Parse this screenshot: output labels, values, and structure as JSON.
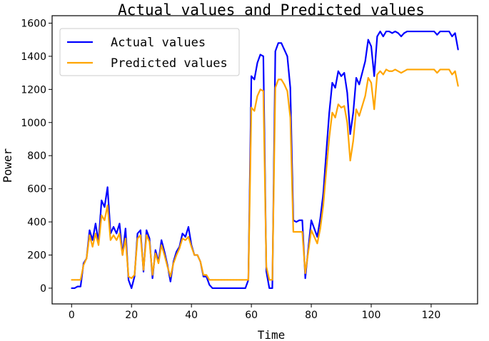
{
  "chart_data": {
    "type": "line",
    "title": "Actual values and Predicted values",
    "xlabel": "Time",
    "ylabel": "Power",
    "xlim": [
      -6.5,
      135.5
    ],
    "ylim": [
      -95,
      1645
    ],
    "xticks": [
      0,
      20,
      40,
      60,
      80,
      100,
      120
    ],
    "yticks": [
      0,
      200,
      400,
      600,
      800,
      1000,
      1200,
      1400,
      1600
    ],
    "grid": false,
    "legend_position": "top-left",
    "series": [
      {
        "name": "Actual values",
        "color": "#0000ff",
        "x": [
          0,
          1,
          2,
          3,
          4,
          5,
          6,
          7,
          8,
          9,
          10,
          11,
          12,
          13,
          14,
          15,
          16,
          17,
          18,
          19,
          20,
          21,
          22,
          23,
          24,
          25,
          26,
          27,
          28,
          29,
          30,
          31,
          32,
          33,
          34,
          35,
          36,
          37,
          38,
          39,
          40,
          41,
          42,
          43,
          44,
          45,
          46,
          47,
          48,
          49,
          50,
          51,
          52,
          53,
          54,
          55,
          56,
          57,
          58,
          59,
          60,
          61,
          62,
          63,
          64,
          65,
          66,
          67,
          68,
          69,
          70,
          71,
          72,
          73,
          74,
          75,
          76,
          77,
          78,
          79,
          80,
          81,
          82,
          83,
          84,
          85,
          86,
          87,
          88,
          89,
          90,
          91,
          92,
          93,
          94,
          95,
          96,
          97,
          98,
          99,
          100,
          101,
          102,
          103,
          104,
          105,
          106,
          107,
          108,
          109,
          110,
          111,
          112,
          113,
          114,
          115,
          116,
          117,
          118,
          119,
          120,
          121,
          122,
          123,
          124,
          125,
          126,
          127,
          128,
          129
        ],
        "values": [
          0,
          0,
          10,
          10,
          150,
          180,
          350,
          290,
          390,
          280,
          530,
          490,
          610,
          330,
          370,
          330,
          390,
          200,
          360,
          50,
          0,
          70,
          330,
          350,
          100,
          350,
          300,
          60,
          230,
          160,
          290,
          220,
          140,
          40,
          160,
          220,
          250,
          330,
          310,
          370,
          260,
          200,
          200,
          160,
          70,
          70,
          20,
          0,
          0,
          0,
          0,
          0,
          0,
          0,
          0,
          0,
          0,
          0,
          0,
          50,
          1280,
          1260,
          1360,
          1410,
          1400,
          100,
          0,
          0,
          1430,
          1480,
          1480,
          1440,
          1400,
          1210,
          410,
          400,
          410,
          410,
          60,
          240,
          410,
          360,
          310,
          420,
          570,
          820,
          1060,
          1240,
          1210,
          1310,
          1280,
          1300,
          1180,
          930,
          1060,
          1270,
          1230,
          1300,
          1370,
          1500,
          1460,
          1280,
          1520,
          1550,
          1520,
          1550,
          1550,
          1540,
          1550,
          1540,
          1520,
          1540,
          1550,
          1550,
          1550,
          1550,
          1550,
          1550,
          1550,
          1550,
          1550,
          1550,
          1530,
          1550,
          1550,
          1550,
          1550,
          1520,
          1540,
          1440
        ]
      },
      {
        "name": "Predicted values",
        "color": "#ffa500",
        "x": [
          0,
          1,
          2,
          3,
          4,
          5,
          6,
          7,
          8,
          9,
          10,
          11,
          12,
          13,
          14,
          15,
          16,
          17,
          18,
          19,
          20,
          21,
          22,
          23,
          24,
          25,
          26,
          27,
          28,
          29,
          30,
          31,
          32,
          33,
          34,
          35,
          36,
          37,
          38,
          39,
          40,
          41,
          42,
          43,
          44,
          45,
          46,
          47,
          48,
          49,
          50,
          51,
          52,
          53,
          54,
          55,
          56,
          57,
          58,
          59,
          60,
          61,
          62,
          63,
          64,
          65,
          66,
          67,
          68,
          69,
          70,
          71,
          72,
          73,
          74,
          75,
          76,
          77,
          78,
          79,
          80,
          81,
          82,
          83,
          84,
          85,
          86,
          87,
          88,
          89,
          90,
          91,
          92,
          93,
          94,
          95,
          96,
          97,
          98,
          99,
          100,
          101,
          102,
          103,
          104,
          105,
          106,
          107,
          108,
          109,
          110,
          111,
          112,
          113,
          114,
          115,
          116,
          117,
          118,
          119,
          120,
          121,
          122,
          123,
          124,
          125,
          126,
          127,
          128,
          129
        ],
        "values": [
          50,
          50,
          50,
          50,
          140,
          180,
          320,
          250,
          330,
          260,
          440,
          410,
          500,
          290,
          320,
          290,
          330,
          200,
          300,
          70,
          60,
          80,
          300,
          320,
          110,
          320,
          280,
          80,
          210,
          150,
          260,
          200,
          130,
          70,
          150,
          200,
          240,
          300,
          290,
          310,
          250,
          200,
          200,
          160,
          80,
          80,
          50,
          50,
          50,
          50,
          50,
          50,
          50,
          50,
          50,
          50,
          50,
          50,
          50,
          50,
          1090,
          1070,
          1160,
          1200,
          1190,
          130,
          50,
          50,
          1210,
          1260,
          1260,
          1230,
          1190,
          1030,
          340,
          340,
          340,
          340,
          90,
          220,
          350,
          310,
          270,
          360,
          500,
          710,
          910,
          1060,
          1030,
          1110,
          1090,
          1100,
          1000,
          770,
          890,
          1080,
          1040,
          1100,
          1160,
          1270,
          1240,
          1080,
          1290,
          1310,
          1290,
          1320,
          1310,
          1310,
          1320,
          1310,
          1300,
          1310,
          1320,
          1320,
          1320,
          1320,
          1320,
          1320,
          1320,
          1320,
          1320,
          1320,
          1300,
          1320,
          1320,
          1320,
          1320,
          1290,
          1310,
          1220
        ]
      }
    ]
  }
}
